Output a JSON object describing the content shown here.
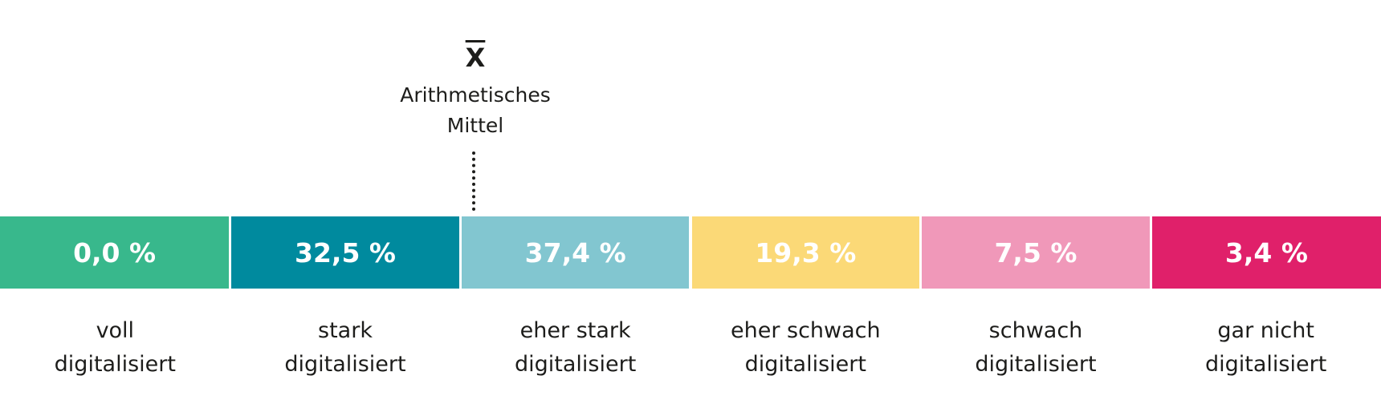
{
  "chart_data": {
    "type": "bar",
    "subtype": "categorical-strip",
    "categories": [
      "voll digitalisiert",
      "stark digitalisiert",
      "eher stark digitalisiert",
      "eher schwach digitalisiert",
      "schwach digitalisiert",
      "gar nicht digitalisiert"
    ],
    "label_lines": [
      [
        "voll",
        "digitalisiert"
      ],
      [
        "stark",
        "digitalisiert"
      ],
      [
        "eher stark",
        "digitalisiert"
      ],
      [
        "eher schwach",
        "digitalisiert"
      ],
      [
        "schwach",
        "digitalisiert"
      ],
      [
        "gar nicht",
        "digitalisiert"
      ]
    ],
    "values": [
      0.0,
      32.5,
      37.4,
      19.3,
      7.5,
      3.4
    ],
    "value_labels": [
      "0,0 %",
      "32,5 %",
      "37,4 %",
      "19,3 %",
      "7,5 %",
      "3,4 %"
    ],
    "colors": [
      "#38b88c",
      "#008a9e",
      "#82c6d0",
      "#fbd977",
      "#f098b9",
      "#e0206a"
    ],
    "unit": "%",
    "mean": {
      "symbol": "X",
      "label_lines": [
        "Arithmetisches",
        "Mittel"
      ],
      "position_category_boundary": "between stark and eher stark"
    }
  }
}
